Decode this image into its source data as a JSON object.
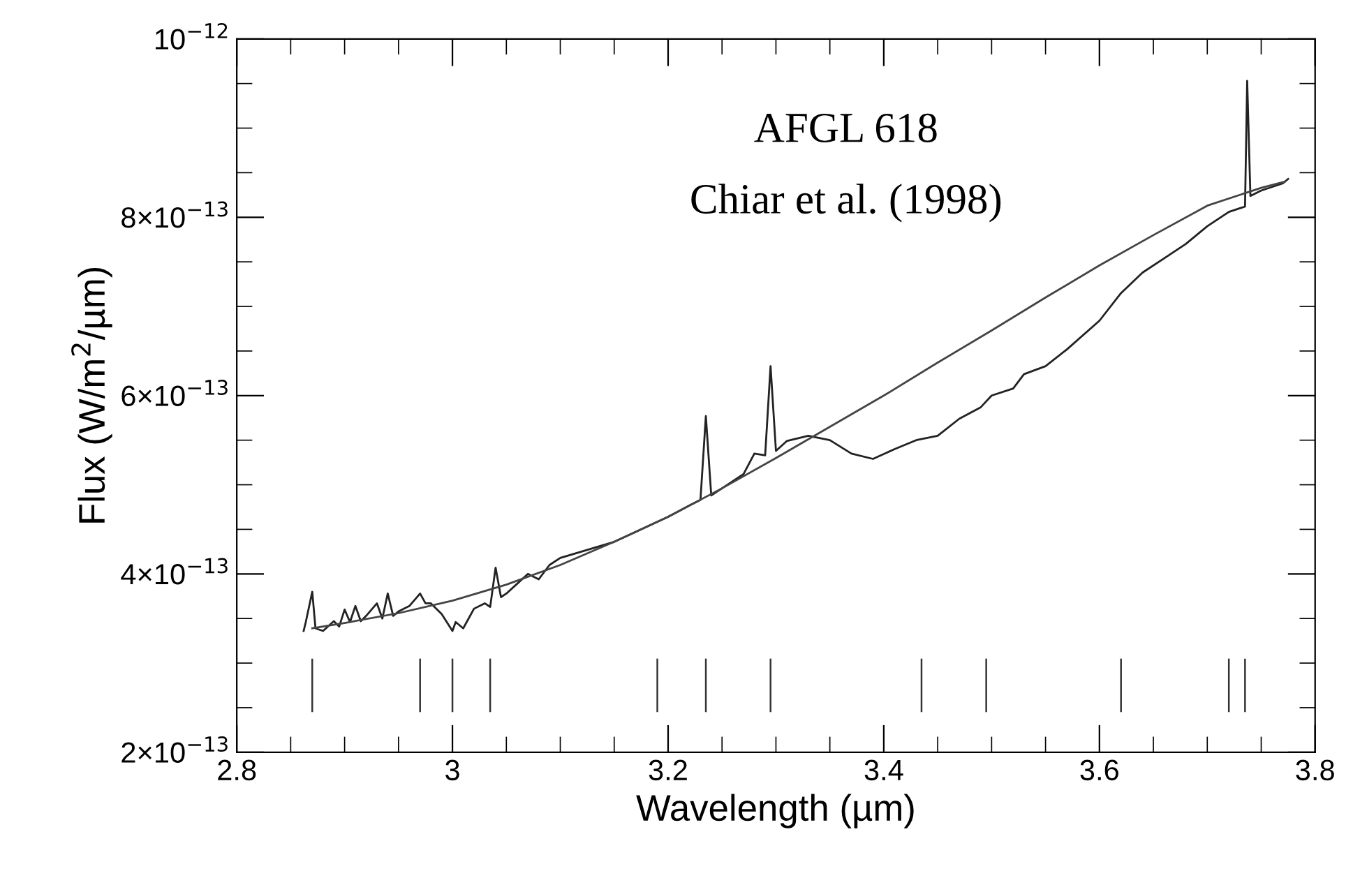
{
  "chart_data": {
    "type": "line",
    "xlabel": "Wavelength (µm)",
    "ylabel": "Flux (W/m$^{2}$/µm)",
    "annotations": [
      "AFGL 618",
      "Chiar et al. (1998)"
    ],
    "xlim": [
      2.8,
      3.8
    ],
    "ylim": [
      2e-13,
      1e-12
    ],
    "xticks": [
      {
        "value": 2.8,
        "label": "2.8"
      },
      {
        "value": 2.85,
        "label": null
      },
      {
        "value": 2.9,
        "label": null
      },
      {
        "value": 2.95,
        "label": null
      },
      {
        "value": 3.0,
        "label": "3"
      },
      {
        "value": 3.05,
        "label": null
      },
      {
        "value": 3.1,
        "label": null
      },
      {
        "value": 3.15,
        "label": null
      },
      {
        "value": 3.2,
        "label": "3.2"
      },
      {
        "value": 3.25,
        "label": null
      },
      {
        "value": 3.3,
        "label": null
      },
      {
        "value": 3.35,
        "label": null
      },
      {
        "value": 3.4,
        "label": "3.4"
      },
      {
        "value": 3.45,
        "label": null
      },
      {
        "value": 3.5,
        "label": null
      },
      {
        "value": 3.55,
        "label": null
      },
      {
        "value": 3.6,
        "label": "3.6"
      },
      {
        "value": 3.65,
        "label": null
      },
      {
        "value": 3.7,
        "label": null
      },
      {
        "value": 3.75,
        "label": null
      },
      {
        "value": 3.8,
        "label": "3.8"
      }
    ],
    "yticks": [
      {
        "value": 2e-13,
        "label": "2×10$^{−13}$"
      },
      {
        "value": 2.5e-13,
        "label": null
      },
      {
        "value": 3e-13,
        "label": null
      },
      {
        "value": 3.5e-13,
        "label": null
      },
      {
        "value": 4e-13,
        "label": "4×10$^{−13}$"
      },
      {
        "value": 4.5e-13,
        "label": null
      },
      {
        "value": 5e-13,
        "label": null
      },
      {
        "value": 5.5e-13,
        "label": null
      },
      {
        "value": 6e-13,
        "label": "6×10$^{−13}$"
      },
      {
        "value": 6.5e-13,
        "label": null
      },
      {
        "value": 7e-13,
        "label": null
      },
      {
        "value": 7.5e-13,
        "label": null
      },
      {
        "value": 8e-13,
        "label": "8×10$^{−13}$"
      },
      {
        "value": 8.5e-13,
        "label": null
      },
      {
        "value": 9e-13,
        "label": null
      },
      {
        "value": 9.5e-13,
        "label": null
      },
      {
        "value": 1e-12,
        "label": "10$^{−12}$"
      }
    ],
    "grid": false,
    "legend": false,
    "marker": "none",
    "line_style": "solid",
    "series": [
      {
        "color": "#222222",
        "x": [
          2.862,
          2.864,
          2.87,
          2.873,
          2.88,
          2.89,
          2.895,
          2.9,
          2.905,
          2.91,
          2.915,
          2.92,
          2.93,
          2.935,
          2.94,
          2.945,
          2.95,
          2.96,
          2.97,
          2.975,
          2.98,
          2.99,
          3.0,
          3.003,
          3.01,
          3.02,
          3.03,
          3.035,
          3.04,
          3.045,
          3.05,
          3.06,
          3.07,
          3.08,
          3.09,
          3.1,
          3.15,
          3.2,
          3.22,
          3.23,
          3.235,
          3.24,
          3.25,
          3.27,
          3.28,
          3.29,
          3.295,
          3.3,
          3.31,
          3.33,
          3.35,
          3.37,
          3.39,
          3.41,
          3.43,
          3.45,
          3.47,
          3.49,
          3.5,
          3.52,
          3.53,
          3.55,
          3.57,
          3.6,
          3.62,
          3.64,
          3.66,
          3.68,
          3.7,
          3.72,
          3.735,
          3.737,
          3.74,
          3.75,
          3.77,
          3.775
        ],
        "values": [
          3.36e-13,
          3.46e-13,
          3.8e-13,
          3.39e-13,
          3.36e-13,
          3.47e-13,
          3.41e-13,
          3.6e-13,
          3.46e-13,
          3.64e-13,
          3.47e-13,
          3.53e-13,
          3.67e-13,
          3.5e-13,
          3.78e-13,
          3.53e-13,
          3.58e-13,
          3.64e-13,
          3.78e-13,
          3.67e-13,
          3.67e-13,
          3.55e-13,
          3.36e-13,
          3.46e-13,
          3.39e-13,
          3.61e-13,
          3.67e-13,
          3.63e-13,
          4.07e-13,
          3.74e-13,
          3.78e-13,
          3.89e-13,
          4e-13,
          3.94e-13,
          4.1e-13,
          4.18e-13,
          4.36e-13,
          4.64e-13,
          4.77e-13,
          4.83e-13,
          5.77e-13,
          4.88e-13,
          4.96e-13,
          5.12e-13,
          5.35e-13,
          5.33e-13,
          6.33e-13,
          5.38e-13,
          5.49e-13,
          5.55e-13,
          5.5e-13,
          5.35e-13,
          5.29e-13,
          5.4e-13,
          5.5e-13,
          5.55e-13,
          5.74e-13,
          5.87e-13,
          6e-13,
          6.08e-13,
          6.24e-13,
          6.33e-13,
          6.52e-13,
          6.84e-13,
          7.15e-13,
          7.38e-13,
          7.54e-13,
          7.7e-13,
          7.9e-13,
          8.06e-13,
          8.12e-13,
          9.53e-13,
          8.24e-13,
          8.3e-13,
          8.38e-13,
          8.43e-13
        ]
      },
      {
        "color": "#444444",
        "x": [
          2.87,
          2.9,
          2.95,
          3.0,
          3.05,
          3.1,
          3.15,
          3.2,
          3.25,
          3.3,
          3.35,
          3.4,
          3.45,
          3.5,
          3.55,
          3.6,
          3.65,
          3.7,
          3.75,
          3.772
        ],
        "values": [
          3.39e-13,
          3.45e-13,
          3.56e-13,
          3.7e-13,
          3.88e-13,
          4.1e-13,
          4.36e-13,
          4.64e-13,
          4.96e-13,
          5.3e-13,
          5.65e-13,
          6e-13,
          6.37e-13,
          6.73e-13,
          7.1e-13,
          7.46e-13,
          7.8e-13,
          8.13e-13,
          8.33e-13,
          8.4e-13
        ]
      },
      {
        "type": "bar",
        "color": "#333333",
        "x": [
          2.87,
          2.97,
          3.0,
          3.035,
          3.19,
          3.235,
          3.295,
          3.435,
          3.495,
          3.62,
          3.72,
          3.735
        ],
        "values": [
          6e-14,
          6e-14,
          6e-14,
          6e-14,
          6e-14,
          6e-14,
          6e-14,
          6e-14,
          6e-14,
          6e-14,
          6e-14,
          6e-14
        ],
        "base": [
          2.45e-13,
          2.45e-13,
          2.45e-13,
          2.45e-13,
          2.45e-13,
          2.45e-13,
          2.45e-13,
          2.45e-13,
          2.45e-13,
          2.45e-13,
          2.45e-13,
          2.45e-13
        ]
      }
    ]
  }
}
